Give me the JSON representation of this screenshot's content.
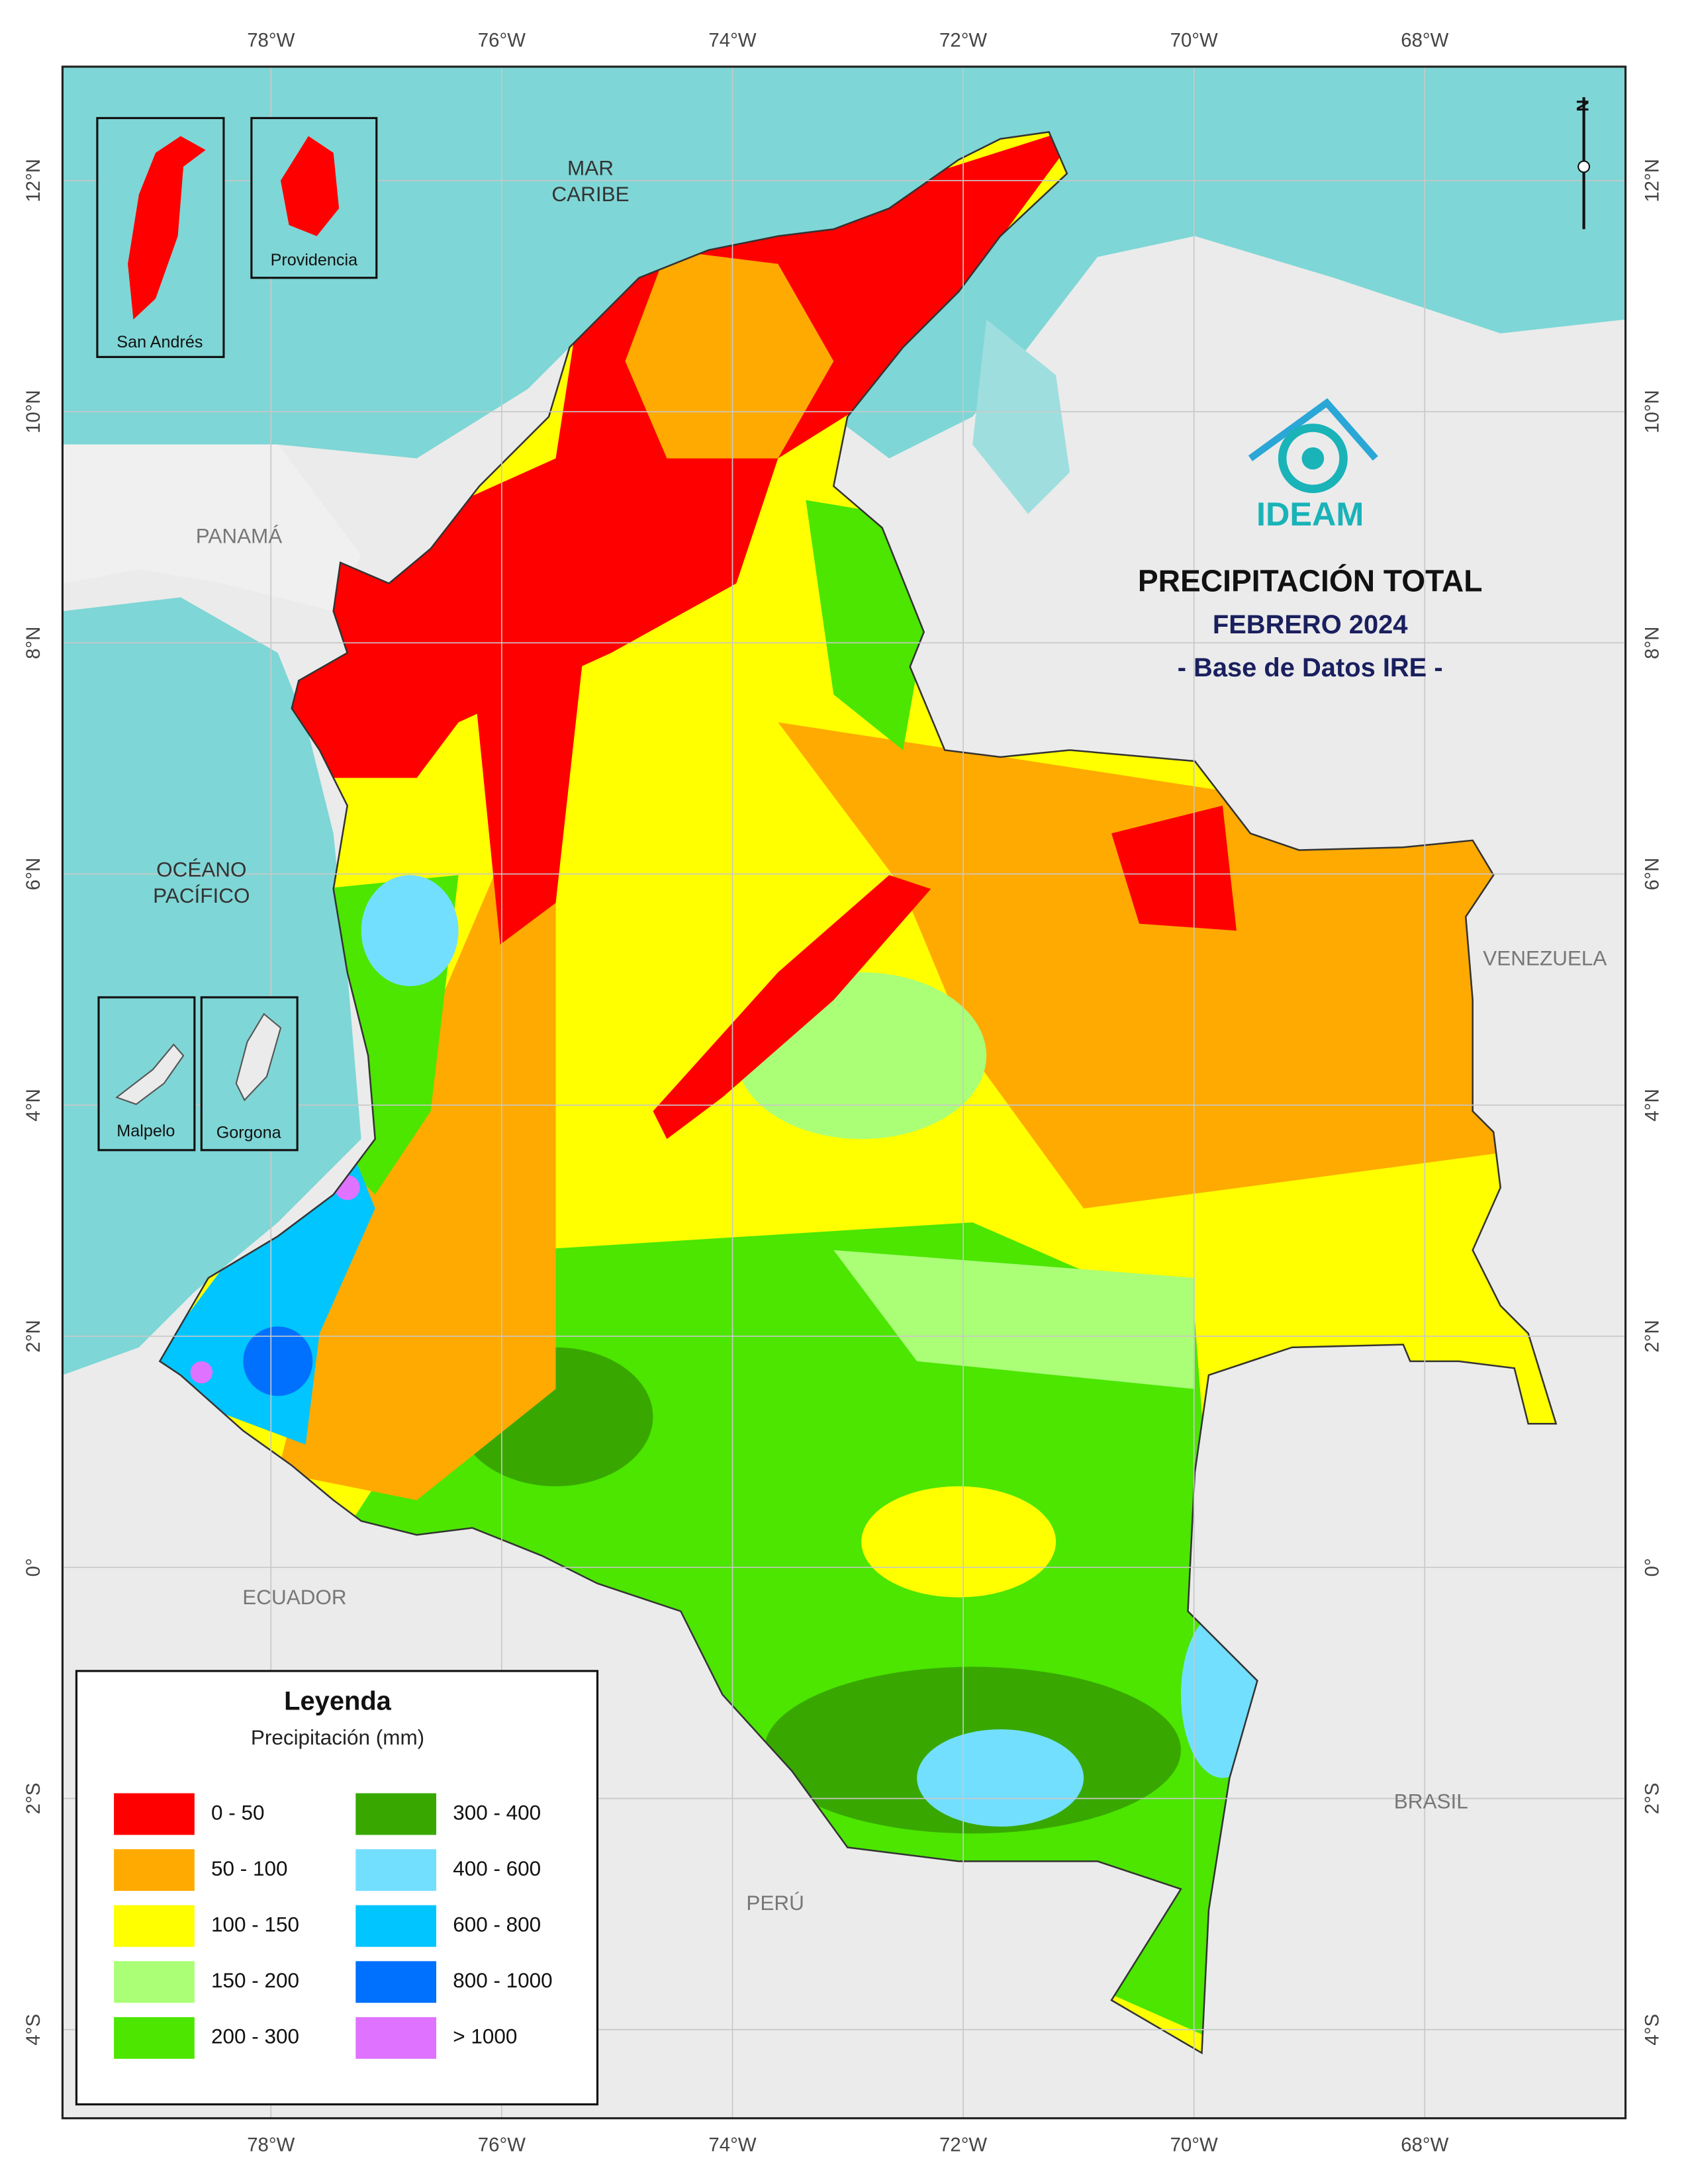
{
  "map": {
    "title": "PRECIPITACIÓN TOTAL",
    "subtitle": "FEBRERO 2024",
    "source": "- Base de Datos IRE -",
    "logo": "IDEAM",
    "north": "N",
    "graticule": {
      "lon": [
        "78°W",
        "76°W",
        "74°W",
        "72°W",
        "70°W",
        "68°W"
      ],
      "lat": [
        "12°N",
        "10°N",
        "8°N",
        "6°N",
        "4°N",
        "2°N",
        "0°",
        "2°S",
        "4°S"
      ]
    },
    "places": [
      {
        "lines": [
          "MAR",
          "CARIBE"
        ],
        "color": "#333333"
      },
      {
        "lines": [
          "PANAMÁ"
        ],
        "color": "#777777"
      },
      {
        "lines": [
          "OCÉANO",
          "PACÍFICO"
        ],
        "color": "#333333"
      },
      {
        "lines": [
          "VENEZUELA"
        ],
        "color": "#777777"
      },
      {
        "lines": [
          "ECUADOR"
        ],
        "color": "#777777"
      },
      {
        "lines": [
          "BRASIL"
        ],
        "color": "#777777"
      },
      {
        "lines": [
          "PERÚ"
        ],
        "color": "#777777"
      }
    ],
    "insets": [
      "San Andrés",
      "Providencia",
      "Malpelo",
      "Gorgona"
    ],
    "legend": {
      "title": "Leyenda",
      "subtitle": "Precipitación (mm)",
      "items": [
        {
          "label": "0 - 50",
          "color": "#ff0000"
        },
        {
          "label": "50 - 100",
          "color": "#ffaa00"
        },
        {
          "label": "100 - 150",
          "color": "#ffff00"
        },
        {
          "label": "150 - 200",
          "color": "#aaff77"
        },
        {
          "label": "200 - 300",
          "color": "#4ce600"
        },
        {
          "label": "300 - 400",
          "color": "#38a800"
        },
        {
          "label": "400 - 600",
          "color": "#73dfff"
        },
        {
          "label": "600 - 800",
          "color": "#00c5ff"
        },
        {
          "label": "800 - 1000",
          "color": "#0070ff"
        },
        {
          "label": "> 1000",
          "color": "#df73ff"
        }
      ]
    }
  }
}
